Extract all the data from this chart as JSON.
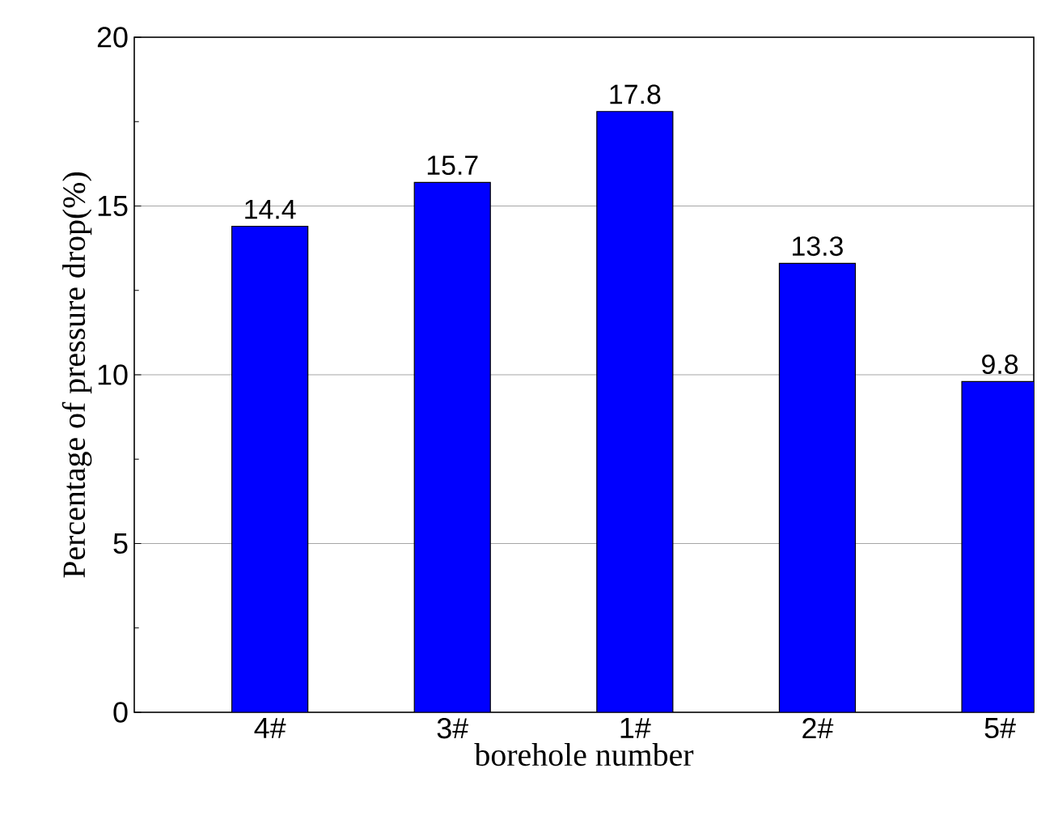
{
  "chart_data": {
    "type": "bar",
    "xlabel": "borehole number",
    "ylabel": "Percentage of pressure drop(%)",
    "categories": [
      "4#",
      "3#",
      "1#",
      "2#",
      "5#"
    ],
    "values": [
      14.4,
      15.7,
      17.8,
      13.3,
      9.8
    ],
    "color": "#0000ff",
    "ylim": [
      0,
      20
    ],
    "yticks": [
      0,
      5,
      10,
      15,
      20
    ],
    "grid": "y",
    "data_labels": true
  }
}
